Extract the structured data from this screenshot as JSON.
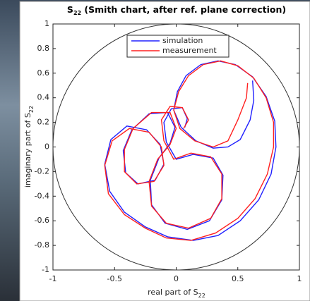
{
  "chart_data": {
    "type": "line",
    "title": [
      "S",
      "22",
      " (Smith chart, after ref. plane correction)"
    ],
    "xlabel": [
      "real part of S",
      "22"
    ],
    "ylabel": [
      "imaginary part of S",
      "22"
    ],
    "xlim": [
      -1,
      1
    ],
    "ylim": [
      -1,
      1
    ],
    "xticks": [
      -1,
      -0.5,
      0,
      0.5,
      1
    ],
    "yticks": [
      1,
      0.8,
      0.6,
      0.4,
      0.2,
      0,
      -0.2,
      -0.4,
      -0.6,
      -0.8,
      -1
    ],
    "grid": false,
    "legend": "top",
    "series": [
      {
        "name": "simulation",
        "color": "#2020ff",
        "x": [
          0.62,
          0.63,
          0.6,
          0.52,
          0.42,
          0.3,
          0.16,
          0.04,
          -0.02,
          0.01,
          0.08,
          0.2,
          0.34,
          0.48,
          0.62,
          0.73,
          0.8,
          0.81,
          0.77,
          0.67,
          0.52,
          0.34,
          0.14,
          -0.07,
          -0.25,
          -0.42,
          -0.54,
          -0.58,
          -0.53,
          -0.4,
          -0.24,
          -0.13,
          -0.1,
          -0.17,
          -0.31,
          -0.41,
          -0.43,
          -0.36,
          -0.22,
          -0.07,
          -0.01,
          -0.05,
          -0.14,
          -0.21,
          -0.2,
          -0.09,
          0.09,
          0.27,
          0.37,
          0.38,
          0.3,
          0.14,
          0.0,
          -0.08,
          -0.1,
          -0.04,
          0.05,
          0.09,
          0.07
        ],
        "values": [
          0.54,
          0.38,
          0.22,
          0.06,
          0.0,
          -0.01,
          0.05,
          0.16,
          0.3,
          0.45,
          0.58,
          0.67,
          0.7,
          0.67,
          0.57,
          0.41,
          0.21,
          0.0,
          -0.22,
          -0.43,
          -0.6,
          -0.72,
          -0.76,
          -0.73,
          -0.65,
          -0.53,
          -0.36,
          -0.14,
          0.06,
          0.17,
          0.14,
          0.02,
          -0.14,
          -0.27,
          -0.3,
          -0.21,
          -0.03,
          0.14,
          0.27,
          0.28,
          0.16,
          0.03,
          -0.09,
          -0.27,
          -0.47,
          -0.62,
          -0.67,
          -0.6,
          -0.43,
          -0.23,
          -0.09,
          -0.06,
          -0.1,
          0.04,
          0.2,
          0.31,
          0.32,
          0.23,
          0.16
        ]
      },
      {
        "name": "measurement",
        "color": "#ff2020",
        "x": [
          0.58,
          0.57,
          0.5,
          0.42,
          0.3,
          0.15,
          0.03,
          -0.02,
          0.02,
          0.1,
          0.22,
          0.36,
          0.5,
          0.63,
          0.73,
          0.79,
          0.79,
          0.74,
          0.64,
          0.5,
          0.32,
          0.12,
          -0.08,
          -0.25,
          -0.42,
          -0.55,
          -0.58,
          -0.52,
          -0.38,
          -0.22,
          -0.12,
          -0.1,
          -0.18,
          -0.32,
          -0.42,
          -0.42,
          -0.35,
          -0.2,
          -0.05,
          0.0,
          -0.05,
          -0.15,
          -0.22,
          -0.2,
          -0.08,
          0.1,
          0.28,
          0.37,
          0.37,
          0.28,
          0.12,
          -0.02,
          -0.1,
          -0.12,
          -0.05,
          0.05,
          0.1,
          0.06
        ],
        "values": [
          0.52,
          0.4,
          0.22,
          0.05,
          0.0,
          0.05,
          0.15,
          0.3,
          0.45,
          0.58,
          0.67,
          0.7,
          0.66,
          0.56,
          0.4,
          0.2,
          0.0,
          -0.22,
          -0.42,
          -0.58,
          -0.7,
          -0.76,
          -0.74,
          -0.66,
          -0.55,
          -0.38,
          -0.15,
          0.05,
          0.15,
          0.12,
          0.0,
          -0.15,
          -0.28,
          -0.3,
          -0.2,
          -0.02,
          0.15,
          0.28,
          0.28,
          0.15,
          0.02,
          -0.1,
          -0.28,
          -0.48,
          -0.62,
          -0.66,
          -0.58,
          -0.42,
          -0.22,
          -0.08,
          -0.05,
          -0.1,
          0.05,
          0.22,
          0.33,
          0.32,
          0.22,
          0.15
        ]
      }
    ]
  }
}
